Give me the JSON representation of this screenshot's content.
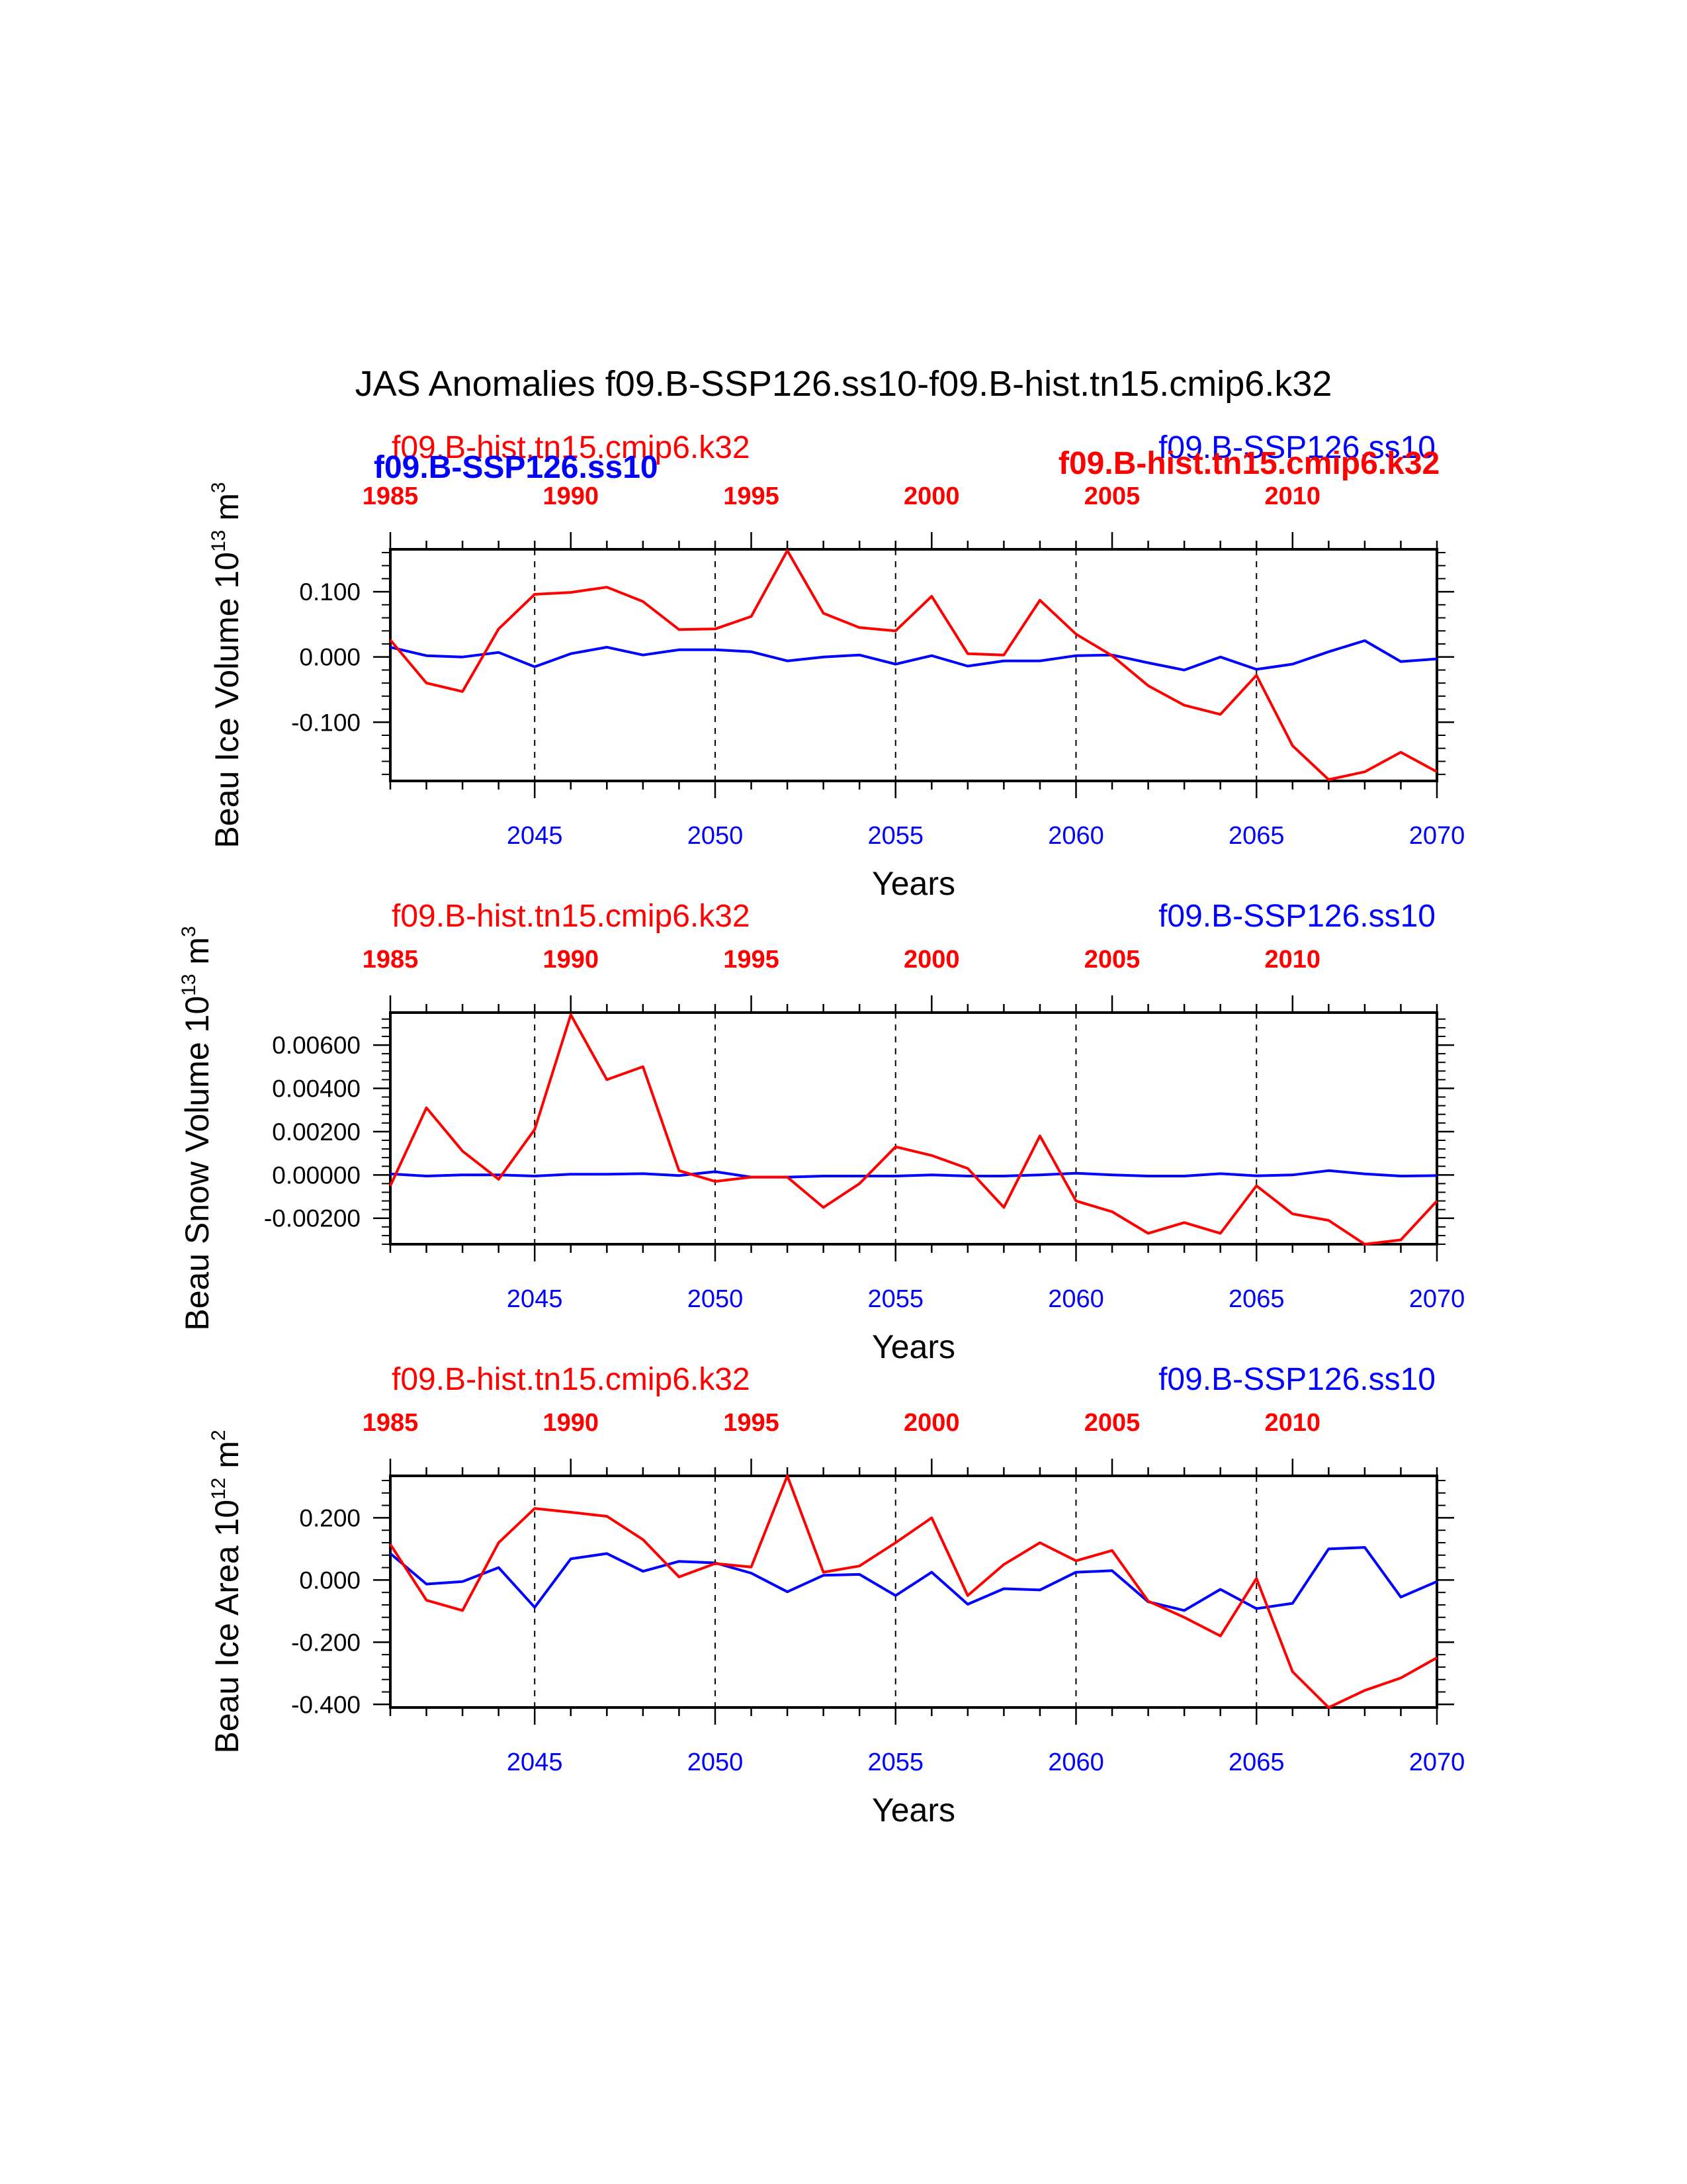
{
  "figure": {
    "title": "JAS Anomalies f09.B-SSP126.ss10-f09.B-hist.tn15.cmip6.k32",
    "overlay_labels": {
      "left": "f09.B-SSP126.ss10",
      "right": "f09.B-hist.tn15.cmip6.k32"
    }
  },
  "colors": {
    "hist": "#ff0000",
    "ssp": "#0000ff",
    "axes": "#000000"
  },
  "chart_data": [
    {
      "type": "line",
      "title": "",
      "ylabel": "Beau Ice Volume 10",
      "ylabel_power": "13",
      "ylabel_unit": " m",
      "ylabel_unit_power": "3",
      "xlabel": "Years",
      "ylim": [
        -0.19,
        0.165
      ],
      "yticks": [
        0.1,
        0.0,
        -0.1
      ],
      "ytick_labels": [
        "0.100",
        "0.000",
        "-0.100"
      ],
      "x_bottom": {
        "range": [
          2041,
          2070
        ],
        "ticks": [
          2045,
          2050,
          2055,
          2060,
          2065,
          2070
        ]
      },
      "x_top": {
        "range": [
          1985,
          2014
        ],
        "ticks": [
          1985,
          1990,
          1995,
          2000,
          2005,
          2010
        ]
      },
      "run_labels": {
        "hist": "f09.B-hist.tn15.cmip6.k32",
        "ssp": "f09.B-SSP126.ss10"
      },
      "grid": "dashed vertical lines at 2045, 2050, 2055, 2060, 2065",
      "x": [
        2041,
        2042,
        2043,
        2044,
        2045,
        2046,
        2047,
        2048,
        2049,
        2050,
        2051,
        2052,
        2053,
        2054,
        2055,
        2056,
        2057,
        2058,
        2059,
        2060,
        2061,
        2062,
        2063,
        2064,
        2065,
        2066,
        2067,
        2068,
        2069,
        2070
      ],
      "series": [
        {
          "name": "f09.B-SSP126.ss10",
          "color": "#0000ff",
          "values": [
            0.015,
            0.002,
            0.0,
            0.007,
            -0.015,
            0.005,
            0.015,
            0.003,
            0.011,
            0.011,
            0.008,
            -0.006,
            0.0,
            0.003,
            -0.011,
            0.002,
            -0.014,
            -0.006,
            -0.006,
            0.002,
            0.003,
            -0.009,
            -0.02,
            0.0,
            -0.019,
            -0.011,
            0.008,
            0.025,
            -0.007,
            -0.003
          ]
        },
        {
          "name": "f09.B-hist.tn15.cmip6.k32",
          "color": "#ff0000",
          "values": [
            0.026,
            -0.04,
            -0.053,
            0.043,
            0.096,
            0.099,
            0.107,
            0.085,
            0.042,
            0.043,
            0.062,
            0.163,
            0.067,
            0.045,
            0.04,
            0.093,
            0.005,
            0.003,
            0.087,
            0.035,
            0.002,
            -0.044,
            -0.074,
            -0.088,
            -0.028,
            -0.136,
            -0.188,
            -0.176,
            -0.146,
            -0.176
          ]
        }
      ]
    },
    {
      "type": "line",
      "title": "",
      "ylabel": "Beau Snow Volume 10",
      "ylabel_power": "13",
      "ylabel_unit": " m",
      "ylabel_unit_power": "3",
      "xlabel": "Years",
      "ylim": [
        -0.0032,
        0.0075
      ],
      "yticks": [
        0.006,
        0.004,
        0.002,
        0.0,
        -0.002
      ],
      "ytick_labels": [
        "0.00600",
        "0.00400",
        "0.00200",
        "0.00000",
        "-0.00200"
      ],
      "x_bottom": {
        "range": [
          2041,
          2070
        ],
        "ticks": [
          2045,
          2050,
          2055,
          2060,
          2065,
          2070
        ]
      },
      "x_top": {
        "range": [
          1985,
          2014
        ],
        "ticks": [
          1985,
          1990,
          1995,
          2000,
          2005,
          2010
        ]
      },
      "run_labels": {
        "hist": "f09.B-hist.tn15.cmip6.k32",
        "ssp": "f09.B-SSP126.ss10"
      },
      "grid": "dashed vertical lines at 2045, 2050, 2055, 2060, 2065",
      "x": [
        2041,
        2042,
        2043,
        2044,
        2045,
        2046,
        2047,
        2048,
        2049,
        2050,
        2051,
        2052,
        2053,
        2054,
        2055,
        2056,
        2057,
        2058,
        2059,
        2060,
        2061,
        2062,
        2063,
        2064,
        2065,
        2066,
        2067,
        2068,
        2069,
        2070
      ],
      "series": [
        {
          "name": "f09.B-SSP126.ss10",
          "color": "#0000ff",
          "values": [
            5e-05,
            -5e-05,
            0.0,
            0.0,
            -5e-05,
            3e-05,
            3e-05,
            6e-05,
            -3e-05,
            0.00015,
            -0.0001,
            -0.0001,
            -5e-05,
            -5e-05,
            -5e-05,
            0.0,
            -5e-05,
            -5e-05,
            0.0,
            8e-05,
            0.0,
            -5e-05,
            -5e-05,
            6e-05,
            -4e-05,
            0.0,
            0.0002,
            5e-05,
            -5e-05,
            -3e-05
          ]
        },
        {
          "name": "f09.B-hist.tn15.cmip6.k32",
          "color": "#ff0000",
          "values": [
            -0.0005,
            0.0031,
            0.0011,
            -0.0002,
            0.0021,
            0.0074,
            0.0044,
            0.005,
            0.0002,
            -0.0003,
            -0.0001,
            -0.0001,
            -0.0015,
            -0.0004,
            0.0013,
            0.0009,
            0.0003,
            -0.0015,
            0.0018,
            -0.0012,
            -0.0017,
            -0.0027,
            -0.0022,
            -0.0027,
            -0.0005,
            -0.0018,
            -0.0021,
            -0.0032,
            -0.003,
            -0.0012
          ]
        }
      ]
    },
    {
      "type": "line",
      "title": "",
      "ylabel": "Beau Ice Area 10",
      "ylabel_power": "12",
      "ylabel_unit": " m",
      "ylabel_unit_power": "2",
      "xlabel": "Years",
      "ylim": [
        -0.41,
        0.335
      ],
      "yticks": [
        0.2,
        0.0,
        -0.2,
        -0.4
      ],
      "ytick_labels": [
        "0.200",
        "0.000",
        "-0.200",
        "-0.400"
      ],
      "x_bottom": {
        "range": [
          2041,
          2070
        ],
        "ticks": [
          2045,
          2050,
          2055,
          2060,
          2065,
          2070
        ]
      },
      "x_top": {
        "range": [
          1985,
          2014
        ],
        "ticks": [
          1985,
          1990,
          1995,
          2000,
          2005,
          2010
        ]
      },
      "run_labels": {
        "hist": "f09.B-hist.tn15.cmip6.k32",
        "ssp": "f09.B-SSP126.ss10"
      },
      "grid": "dashed vertical lines at 2045, 2050, 2055, 2060, 2065",
      "x": [
        2041,
        2042,
        2043,
        2044,
        2045,
        2046,
        2047,
        2048,
        2049,
        2050,
        2051,
        2052,
        2053,
        2054,
        2055,
        2056,
        2057,
        2058,
        2059,
        2060,
        2061,
        2062,
        2063,
        2064,
        2065,
        2066,
        2067,
        2068,
        2069,
        2070
      ],
      "series": [
        {
          "name": "f09.B-SSP126.ss10",
          "color": "#0000ff",
          "values": [
            0.085,
            -0.013,
            -0.005,
            0.04,
            -0.088,
            0.068,
            0.085,
            0.028,
            0.06,
            0.055,
            0.022,
            -0.038,
            0.015,
            0.018,
            -0.05,
            0.025,
            -0.078,
            -0.028,
            -0.032,
            0.025,
            0.03,
            -0.07,
            -0.098,
            -0.03,
            -0.092,
            -0.075,
            0.1,
            0.105,
            -0.055,
            -0.005
          ]
        },
        {
          "name": "f09.B-hist.tn15.cmip6.k32",
          "color": "#ff0000",
          "values": [
            0.115,
            -0.065,
            -0.098,
            0.12,
            0.23,
            0.218,
            0.205,
            0.13,
            0.01,
            0.053,
            0.042,
            0.335,
            0.025,
            0.045,
            0.12,
            0.2,
            -0.05,
            0.05,
            0.12,
            0.062,
            0.095,
            -0.068,
            -0.12,
            -0.18,
            0.005,
            -0.295,
            -0.41,
            -0.355,
            -0.315,
            -0.25
          ]
        }
      ]
    }
  ]
}
